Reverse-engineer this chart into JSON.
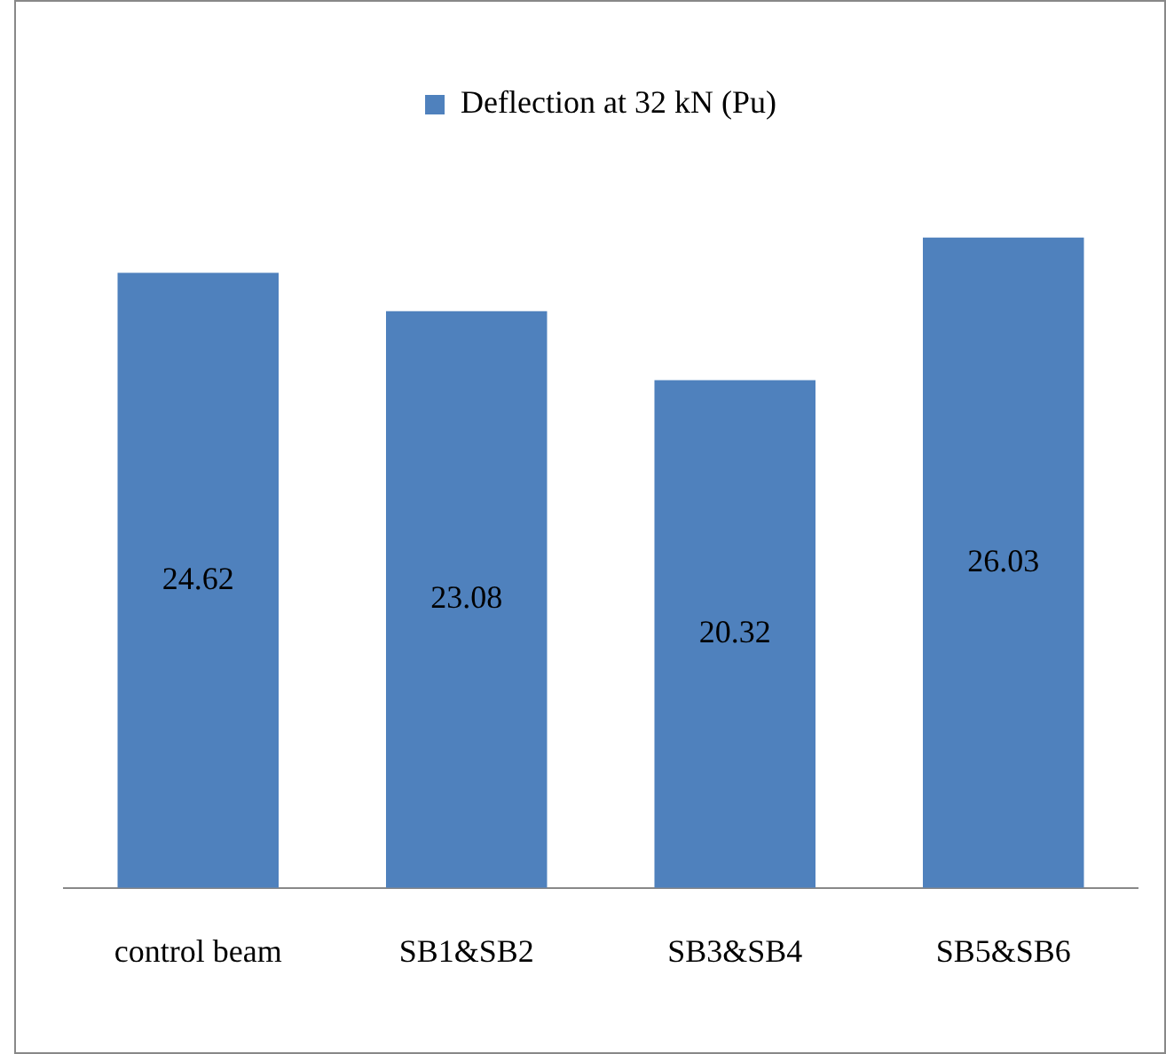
{
  "chart_data": {
    "type": "bar",
    "categories": [
      "control beam",
      "SB1&SB2",
      "SB3&SB4",
      "SB5&SB6"
    ],
    "series": [
      {
        "name": "Deflection at 32 kN (Pu)",
        "color": "#4f81bd",
        "values": [
          24.62,
          23.08,
          20.32,
          26.03
        ]
      }
    ],
    "tick_labels": "x",
    "grid": false,
    "legend": "top",
    "data_labels": true
  }
}
